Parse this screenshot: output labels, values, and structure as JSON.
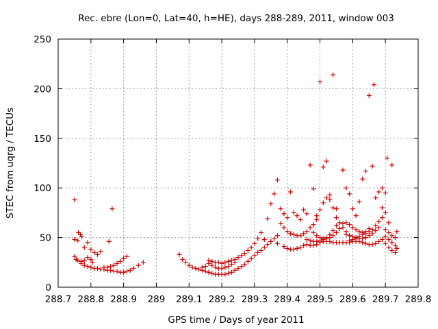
{
  "chart_data": {
    "type": "scatter",
    "title": "Rec. ebre (Lon=0, Lat=40, h=HE), days 288-289, 2011, window 003",
    "xlabel": "GPS time / Days of year 2011",
    "ylabel": "STEC from uqrg / TECUs",
    "xlim": [
      288.7,
      289.8
    ],
    "ylim": [
      0,
      250
    ],
    "xticks": [
      "288.7",
      "288.8",
      "288.9",
      "289",
      "289.1",
      "289.2",
      "289.3",
      "289.4",
      "289.5",
      "289.6",
      "289.7",
      "289.8"
    ],
    "yticks": [
      "0",
      "50",
      "100",
      "150",
      "200",
      "250"
    ],
    "grid": true,
    "marker": "+",
    "color": "#cc0000",
    "series": [
      {
        "points": [
          [
            288.75,
            88
          ],
          [
            288.75,
            48
          ],
          [
            288.76,
            47
          ],
          [
            288.762,
            55
          ],
          [
            288.768,
            53
          ],
          [
            288.772,
            51
          ],
          [
            288.78,
            40
          ],
          [
            288.79,
            45
          ],
          [
            288.8,
            38
          ],
          [
            288.81,
            35
          ],
          [
            288.82,
            33
          ],
          [
            288.83,
            36
          ],
          [
            288.855,
            46
          ],
          [
            288.865,
            79
          ],
          [
            288.75,
            31
          ],
          [
            288.755,
            28
          ],
          [
            288.76,
            27
          ],
          [
            288.77,
            26
          ],
          [
            288.78,
            27
          ],
          [
            288.79,
            30
          ],
          [
            288.8,
            28
          ],
          [
            288.805,
            25
          ],
          [
            288.77,
            24
          ],
          [
            288.78,
            22
          ],
          [
            288.79,
            21
          ],
          [
            288.8,
            20
          ],
          [
            288.81,
            19
          ],
          [
            288.82,
            19
          ],
          [
            288.83,
            18
          ],
          [
            288.84,
            18
          ],
          [
            288.85,
            17
          ],
          [
            288.86,
            17
          ],
          [
            288.87,
            16
          ],
          [
            288.88,
            16
          ],
          [
            288.89,
            15
          ],
          [
            288.9,
            15
          ],
          [
            288.91,
            16
          ],
          [
            288.92,
            17
          ],
          [
            288.93,
            19
          ],
          [
            288.945,
            22
          ],
          [
            288.96,
            25
          ],
          [
            288.84,
            20
          ],
          [
            288.85,
            20
          ],
          [
            288.86,
            21
          ],
          [
            288.87,
            22
          ],
          [
            288.88,
            24
          ],
          [
            288.89,
            26
          ],
          [
            288.9,
            29
          ],
          [
            288.91,
            31
          ],
          [
            289.07,
            33
          ],
          [
            289.08,
            28
          ],
          [
            289.09,
            25
          ],
          [
            289.1,
            22
          ],
          [
            289.11,
            20
          ],
          [
            289.12,
            19
          ],
          [
            289.13,
            18
          ],
          [
            289.14,
            17
          ],
          [
            289.15,
            16
          ],
          [
            289.16,
            15
          ],
          [
            289.17,
            14
          ],
          [
            289.18,
            13
          ],
          [
            289.19,
            13
          ],
          [
            289.2,
            13
          ],
          [
            289.21,
            13
          ],
          [
            289.22,
            14
          ],
          [
            289.23,
            15
          ],
          [
            289.24,
            17
          ],
          [
            289.25,
            19
          ],
          [
            289.26,
            21
          ],
          [
            289.27,
            23
          ],
          [
            289.28,
            26
          ],
          [
            289.29,
            29
          ],
          [
            289.14,
            20
          ],
          [
            289.15,
            21
          ],
          [
            289.16,
            24
          ],
          [
            289.17,
            22
          ],
          [
            289.18,
            20
          ],
          [
            289.19,
            19
          ],
          [
            289.2,
            19
          ],
          [
            289.21,
            20
          ],
          [
            289.22,
            21
          ],
          [
            289.23,
            23
          ],
          [
            289.24,
            25
          ],
          [
            289.16,
            27
          ],
          [
            289.17,
            26
          ],
          [
            289.18,
            25
          ],
          [
            289.19,
            25
          ],
          [
            289.2,
            24
          ],
          [
            289.21,
            25
          ],
          [
            289.22,
            26
          ],
          [
            289.23,
            27
          ],
          [
            289.24,
            28
          ],
          [
            289.25,
            30
          ],
          [
            289.26,
            32
          ],
          [
            289.27,
            34
          ],
          [
            289.28,
            37
          ],
          [
            289.29,
            40
          ],
          [
            289.3,
            44
          ],
          [
            289.31,
            49
          ],
          [
            289.32,
            55
          ],
          [
            289.3,
            32
          ],
          [
            289.31,
            35
          ],
          [
            289.32,
            37
          ],
          [
            289.33,
            40
          ],
          [
            289.34,
            43
          ],
          [
            289.35,
            46
          ],
          [
            289.36,
            49
          ],
          [
            289.37,
            52
          ],
          [
            289.34,
            69
          ],
          [
            289.35,
            84
          ],
          [
            289.36,
            94
          ],
          [
            289.37,
            108
          ],
          [
            289.38,
            79
          ],
          [
            289.39,
            74
          ],
          [
            289.4,
            70
          ],
          [
            289.41,
            96
          ],
          [
            289.42,
            75
          ],
          [
            289.43,
            72
          ],
          [
            289.44,
            68
          ],
          [
            289.33,
            48
          ],
          [
            289.35,
            46
          ],
          [
            289.37,
            44
          ],
          [
            289.39,
            41
          ],
          [
            289.4,
            39
          ],
          [
            289.41,
            38
          ],
          [
            289.42,
            38
          ],
          [
            289.43,
            39
          ],
          [
            289.44,
            40
          ],
          [
            289.45,
            42
          ],
          [
            289.46,
            43
          ],
          [
            289.47,
            42
          ],
          [
            289.48,
            42
          ],
          [
            289.49,
            43
          ],
          [
            289.5,
            45
          ],
          [
            289.51,
            46
          ],
          [
            289.52,
            46
          ],
          [
            289.53,
            46
          ],
          [
            289.54,
            45
          ],
          [
            289.55,
            45
          ],
          [
            289.56,
            45
          ],
          [
            289.57,
            45
          ],
          [
            289.58,
            45
          ],
          [
            289.59,
            45
          ],
          [
            289.6,
            46
          ],
          [
            289.61,
            46
          ],
          [
            289.62,
            46
          ],
          [
            289.63,
            45
          ],
          [
            289.64,
            44
          ],
          [
            289.65,
            43
          ],
          [
            289.66,
            43
          ],
          [
            289.67,
            44
          ],
          [
            289.68,
            46
          ],
          [
            289.69,
            48
          ],
          [
            289.7,
            44
          ],
          [
            289.71,
            40
          ],
          [
            289.72,
            37
          ],
          [
            289.73,
            35
          ],
          [
            289.38,
            64
          ],
          [
            289.39,
            60
          ],
          [
            289.4,
            56
          ],
          [
            289.41,
            54
          ],
          [
            289.42,
            53
          ],
          [
            289.43,
            52
          ],
          [
            289.44,
            52
          ],
          [
            289.45,
            54
          ],
          [
            289.46,
            56
          ],
          [
            289.47,
            60
          ],
          [
            289.48,
            63
          ],
          [
            289.45,
            78
          ],
          [
            289.46,
            74
          ],
          [
            289.47,
            123
          ],
          [
            289.48,
            99
          ],
          [
            289.49,
            68
          ],
          [
            289.5,
            207
          ],
          [
            289.51,
            121
          ],
          [
            289.52,
            127
          ],
          [
            289.53,
            93
          ],
          [
            289.54,
            214
          ],
          [
            289.55,
            79
          ],
          [
            289.49,
            72
          ],
          [
            289.5,
            78
          ],
          [
            289.51,
            85
          ],
          [
            289.52,
            90
          ],
          [
            289.53,
            88
          ],
          [
            289.54,
            80
          ],
          [
            289.55,
            70
          ],
          [
            289.56,
            65
          ],
          [
            289.57,
            60
          ],
          [
            289.58,
            56
          ],
          [
            289.48,
            55
          ],
          [
            289.49,
            52
          ],
          [
            289.5,
            50
          ],
          [
            289.51,
            49
          ],
          [
            289.52,
            49
          ],
          [
            289.53,
            50
          ],
          [
            289.54,
            52
          ],
          [
            289.55,
            55
          ],
          [
            289.56,
            59
          ],
          [
            289.57,
            64
          ],
          [
            289.46,
            48
          ],
          [
            289.47,
            47
          ],
          [
            289.48,
            46
          ],
          [
            289.49,
            46
          ],
          [
            289.5,
            47
          ],
          [
            289.51,
            48
          ],
          [
            289.52,
            50
          ],
          [
            289.53,
            53
          ],
          [
            289.54,
            57
          ],
          [
            289.55,
            62
          ],
          [
            289.57,
            118
          ],
          [
            289.58,
            100
          ],
          [
            289.59,
            94
          ],
          [
            289.6,
            79
          ],
          [
            289.61,
            72
          ],
          [
            289.62,
            86
          ],
          [
            289.63,
            109
          ],
          [
            289.64,
            117
          ],
          [
            289.65,
            193
          ],
          [
            289.66,
            122
          ],
          [
            289.665,
            204
          ],
          [
            289.58,
            65
          ],
          [
            289.59,
            63
          ],
          [
            289.6,
            60
          ],
          [
            289.61,
            58
          ],
          [
            289.62,
            56
          ],
          [
            289.63,
            55
          ],
          [
            289.64,
            54
          ],
          [
            289.65,
            56
          ],
          [
            289.66,
            58
          ],
          [
            289.67,
            62
          ],
          [
            289.68,
            66
          ],
          [
            289.58,
            53
          ],
          [
            289.59,
            52
          ],
          [
            289.6,
            51
          ],
          [
            289.61,
            50
          ],
          [
            289.62,
            49
          ],
          [
            289.63,
            49
          ],
          [
            289.64,
            50
          ],
          [
            289.65,
            52
          ],
          [
            289.66,
            54
          ],
          [
            289.67,
            57
          ],
          [
            289.68,
            60
          ],
          [
            289.59,
            47
          ],
          [
            289.6,
            48
          ],
          [
            289.61,
            49
          ],
          [
            289.62,
            51
          ],
          [
            289.63,
            53
          ],
          [
            289.64,
            56
          ],
          [
            289.65,
            59
          ],
          [
            289.67,
            90
          ],
          [
            289.68,
            96
          ],
          [
            289.69,
            100
          ],
          [
            289.7,
            95
          ],
          [
            289.705,
            130
          ],
          [
            289.72,
            123
          ],
          [
            289.69,
            80
          ],
          [
            289.7,
            75
          ],
          [
            289.69,
            70
          ],
          [
            289.71,
            65
          ],
          [
            289.7,
            58
          ],
          [
            289.71,
            55
          ],
          [
            289.72,
            52
          ],
          [
            289.73,
            50
          ],
          [
            289.735,
            56
          ],
          [
            289.7,
            51
          ],
          [
            289.71,
            48
          ],
          [
            289.72,
            45
          ],
          [
            289.73,
            42
          ],
          [
            289.735,
            39
          ]
        ]
      }
    ]
  }
}
